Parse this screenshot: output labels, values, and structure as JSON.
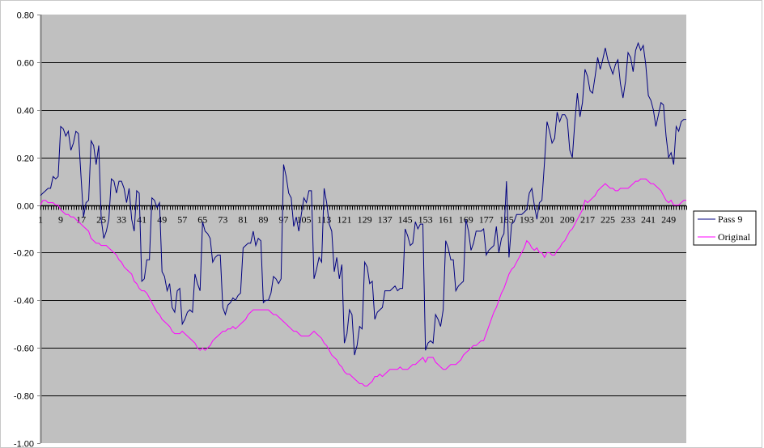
{
  "chart_data": {
    "type": "line",
    "title": "",
    "xlabel": "",
    "ylabel": "",
    "ylim": [
      -1.0,
      0.8
    ],
    "y_ticks": [
      "0.80",
      "0.60",
      "0.40",
      "0.20",
      "0.00",
      "-0.20",
      "-0.40",
      "-0.60",
      "-0.80",
      "-1.00"
    ],
    "y_tick_values": [
      0.8,
      0.6,
      0.4,
      0.2,
      0,
      -0.2,
      -0.4,
      -0.6,
      -0.8,
      -1.0
    ],
    "x_categories_count": 256,
    "x_tick_labels": [
      "1",
      "9",
      "17",
      "25",
      "33",
      "41",
      "49",
      "57",
      "65",
      "73",
      "81",
      "89",
      "97",
      "105",
      "113",
      "121",
      "129",
      "137",
      "145",
      "153",
      "161",
      "169",
      "177",
      "185",
      "193",
      "201",
      "209",
      "217",
      "225",
      "233",
      "241",
      "249"
    ],
    "grid": true,
    "plot_background": "#c0c0c0",
    "legend_position": "right",
    "series": [
      {
        "name": "Pass 9",
        "color": "#000080",
        "values": [
          0.04,
          0.05,
          0.06,
          0.07,
          0.07,
          0.12,
          0.11,
          0.12,
          0.33,
          0.32,
          0.29,
          0.31,
          0.23,
          0.26,
          0.31,
          0.3,
          0.12,
          -0.05,
          0.01,
          0.02,
          0.27,
          0.25,
          0.17,
          0.25,
          -0.06,
          -0.14,
          -0.11,
          -0.06,
          0.11,
          0.1,
          0.05,
          0.1,
          0.1,
          0.07,
          0.01,
          0.07,
          -0.06,
          -0.11,
          0.06,
          0.05,
          -0.32,
          -0.31,
          -0.23,
          -0.23,
          0.03,
          0.02,
          -0.01,
          0.01,
          -0.28,
          -0.3,
          -0.36,
          -0.33,
          -0.43,
          -0.45,
          -0.36,
          -0.35,
          -0.5,
          -0.48,
          -0.45,
          -0.44,
          -0.45,
          -0.29,
          -0.33,
          -0.36,
          -0.07,
          -0.11,
          -0.12,
          -0.14,
          -0.24,
          -0.22,
          -0.21,
          -0.21,
          -0.43,
          -0.46,
          -0.42,
          -0.41,
          -0.39,
          -0.4,
          -0.38,
          -0.37,
          -0.18,
          -0.17,
          -0.16,
          -0.16,
          -0.11,
          -0.17,
          -0.14,
          -0.15,
          -0.41,
          -0.4,
          -0.4,
          -0.37,
          -0.3,
          -0.31,
          -0.33,
          -0.31,
          0.17,
          0.12,
          0.05,
          0.03,
          -0.09,
          -0.05,
          -0.11,
          -0.04,
          0.03,
          0.01,
          0.06,
          0.06,
          -0.31,
          -0.27,
          -0.22,
          -0.24,
          0.07,
          0.01,
          -0.08,
          -0.11,
          -0.28,
          -0.22,
          -0.31,
          -0.25,
          -0.58,
          -0.54,
          -0.44,
          -0.46,
          -0.63,
          -0.59,
          -0.51,
          -0.52,
          -0.24,
          -0.26,
          -0.33,
          -0.32,
          -0.48,
          -0.45,
          -0.44,
          -0.43,
          -0.36,
          -0.36,
          -0.36,
          -0.35,
          -0.34,
          -0.36,
          -0.35,
          -0.35,
          -0.1,
          -0.13,
          -0.17,
          -0.16,
          -0.07,
          -0.1,
          -0.08,
          -0.08,
          -0.61,
          -0.58,
          -0.57,
          -0.58,
          -0.46,
          -0.48,
          -0.51,
          -0.44,
          -0.15,
          -0.18,
          -0.23,
          -0.23,
          -0.36,
          -0.34,
          -0.33,
          -0.32,
          -0.06,
          -0.11,
          -0.19,
          -0.16,
          -0.11,
          -0.11,
          -0.11,
          -0.1,
          -0.21,
          -0.19,
          -0.18,
          -0.17,
          -0.09,
          -0.2,
          -0.14,
          -0.12,
          0.1,
          -0.22,
          -0.08,
          -0.07,
          -0.04,
          -0.04,
          -0.04,
          -0.03,
          -0.02,
          0.05,
          0.07,
          0.0,
          -0.06,
          0.01,
          0.02,
          0.18,
          0.35,
          0.31,
          0.26,
          0.28,
          0.39,
          0.35,
          0.38,
          0.38,
          0.36,
          0.23,
          0.2,
          0.35,
          0.47,
          0.37,
          0.43,
          0.57,
          0.54,
          0.48,
          0.47,
          0.54,
          0.62,
          0.57,
          0.61,
          0.66,
          0.61,
          0.58,
          0.55,
          0.59,
          0.61,
          0.51,
          0.45,
          0.52,
          0.64,
          0.62,
          0.56,
          0.65,
          0.68,
          0.65,
          0.67,
          0.59,
          0.46,
          0.44,
          0.4,
          0.33,
          0.38,
          0.43,
          0.42,
          0.29,
          0.2,
          0.22,
          0.17,
          0.33,
          0.31,
          0.35,
          0.36,
          0.36
        ]
      },
      {
        "name": "Original",
        "color": "#ff00ff",
        "values": [
          0.0,
          0.02,
          0.02,
          0.01,
          0.01,
          0.01,
          0.0,
          0.0,
          -0.02,
          -0.03,
          -0.04,
          -0.04,
          -0.05,
          -0.05,
          -0.06,
          -0.07,
          -0.08,
          -0.09,
          -0.1,
          -0.11,
          -0.14,
          -0.15,
          -0.16,
          -0.16,
          -0.17,
          -0.17,
          -0.17,
          -0.18,
          -0.19,
          -0.2,
          -0.21,
          -0.23,
          -0.24,
          -0.26,
          -0.27,
          -0.28,
          -0.29,
          -0.32,
          -0.33,
          -0.35,
          -0.36,
          -0.36,
          -0.37,
          -0.39,
          -0.41,
          -0.43,
          -0.45,
          -0.46,
          -0.48,
          -0.49,
          -0.5,
          -0.51,
          -0.53,
          -0.54,
          -0.54,
          -0.54,
          -0.53,
          -0.54,
          -0.55,
          -0.56,
          -0.57,
          -0.58,
          -0.6,
          -0.61,
          -0.6,
          -0.61,
          -0.6,
          -0.59,
          -0.57,
          -0.56,
          -0.55,
          -0.54,
          -0.53,
          -0.53,
          -0.52,
          -0.52,
          -0.51,
          -0.52,
          -0.51,
          -0.5,
          -0.49,
          -0.48,
          -0.46,
          -0.45,
          -0.44,
          -0.44,
          -0.44,
          -0.44,
          -0.44,
          -0.44,
          -0.44,
          -0.45,
          -0.46,
          -0.46,
          -0.47,
          -0.48,
          -0.49,
          -0.5,
          -0.51,
          -0.52,
          -0.53,
          -0.53,
          -0.54,
          -0.55,
          -0.55,
          -0.55,
          -0.55,
          -0.54,
          -0.53,
          -0.54,
          -0.55,
          -0.56,
          -0.58,
          -0.59,
          -0.61,
          -0.63,
          -0.64,
          -0.65,
          -0.67,
          -0.68,
          -0.7,
          -0.71,
          -0.71,
          -0.72,
          -0.73,
          -0.74,
          -0.75,
          -0.75,
          -0.76,
          -0.76,
          -0.75,
          -0.74,
          -0.72,
          -0.72,
          -0.71,
          -0.72,
          -0.71,
          -0.7,
          -0.69,
          -0.69,
          -0.69,
          -0.69,
          -0.68,
          -0.69,
          -0.69,
          -0.69,
          -0.68,
          -0.67,
          -0.67,
          -0.66,
          -0.65,
          -0.64,
          -0.66,
          -0.64,
          -0.64,
          -0.64,
          -0.66,
          -0.67,
          -0.68,
          -0.69,
          -0.69,
          -0.68,
          -0.67,
          -0.67,
          -0.67,
          -0.66,
          -0.65,
          -0.63,
          -0.62,
          -0.61,
          -0.6,
          -0.59,
          -0.59,
          -0.58,
          -0.57,
          -0.57,
          -0.54,
          -0.51,
          -0.48,
          -0.45,
          -0.43,
          -0.4,
          -0.37,
          -0.35,
          -0.32,
          -0.29,
          -0.27,
          -0.26,
          -0.24,
          -0.22,
          -0.2,
          -0.18,
          -0.15,
          -0.16,
          -0.18,
          -0.19,
          -0.18,
          -0.2,
          -0.2,
          -0.22,
          -0.2,
          -0.2,
          -0.21,
          -0.21,
          -0.19,
          -0.18,
          -0.16,
          -0.15,
          -0.13,
          -0.11,
          -0.1,
          -0.08,
          -0.06,
          -0.04,
          -0.02,
          0.02,
          0.01,
          0.02,
          0.03,
          0.04,
          0.06,
          0.07,
          0.08,
          0.09,
          0.08,
          0.07,
          0.07,
          0.06,
          0.06,
          0.07,
          0.07,
          0.07,
          0.07,
          0.08,
          0.09,
          0.1,
          0.1,
          0.11,
          0.11,
          0.11,
          0.1,
          0.09,
          0.09,
          0.08,
          0.07,
          0.06,
          0.04,
          0.02,
          0.01,
          0.02,
          0.0,
          0.0,
          0.0,
          0.01,
          0.02,
          0.02
        ]
      }
    ]
  }
}
